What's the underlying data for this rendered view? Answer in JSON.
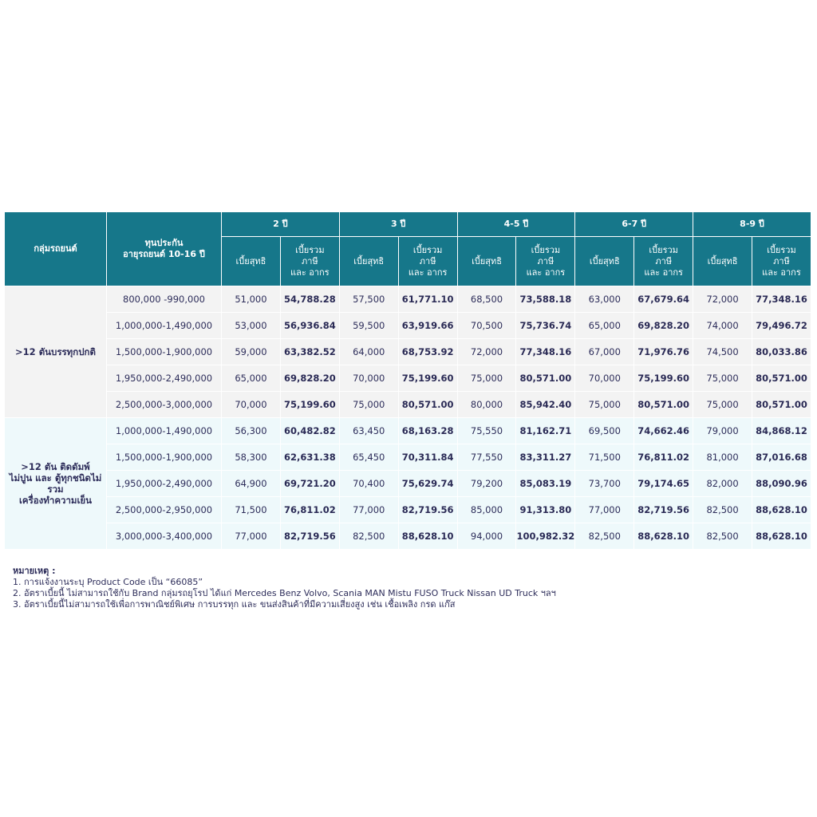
{
  "table": {
    "group_header": "กลุ่มรถยนต์",
    "sum_header": [
      "ทุนประกัน",
      "อายุรถยนต์ 10-16 ปี"
    ],
    "age_groups": [
      "2 ปี",
      "3 ปี",
      "4-5 ปี",
      "6-7 ปี",
      "8-9 ปี"
    ],
    "net_header": "เบี้ยสุทธิ",
    "total_header": [
      "เบี้ยรวม",
      "ภาษี",
      "และ อากร"
    ],
    "groups": [
      {
        "label": [
          ">12 ตันบรรทุกปกติ"
        ],
        "rows": [
          {
            "sum": "800,000 -990,000",
            "cells": [
              "51,000",
              "54,788.28",
              "57,500",
              "61,771.10",
              "68,500",
              "73,588.18",
              "63,000",
              "67,679.64",
              "72,000",
              "77,348.16"
            ]
          },
          {
            "sum": "1,000,000-1,490,000",
            "cells": [
              "53,000",
              "56,936.84",
              "59,500",
              "63,919.66",
              "70,500",
              "75,736.74",
              "65,000",
              "69,828.20",
              "74,000",
              "79,496.72"
            ]
          },
          {
            "sum": "1,500,000-1,900,000",
            "cells": [
              "59,000",
              "63,382.52",
              "64,000",
              "68,753.92",
              "72,000",
              "77,348.16",
              "67,000",
              "71,976.76",
              "74,500",
              "80,033.86"
            ]
          },
          {
            "sum": "1,950,000-2,490,000",
            "cells": [
              "65,000",
              "69,828.20",
              "70,000",
              "75,199.60",
              "75,000",
              "80,571.00",
              "70,000",
              "75,199.60",
              "75,000",
              "80,571.00"
            ]
          },
          {
            "sum": "2,500,000-3,000,000",
            "cells": [
              "70,000",
              "75,199.60",
              "75,000",
              "80,571.00",
              "80,000",
              "85,942.40",
              "75,000",
              "80,571.00",
              "75,000",
              "80,571.00"
            ]
          }
        ]
      },
      {
        "label": [
          ">12 ตัน ติดดัมพ์",
          "ไม่ปูน และ ตู้ทุกชนิดไม่",
          "รวม",
          "เครื่องทำความเย็น"
        ],
        "rows": [
          {
            "sum": "1,000,000-1,490,000",
            "cells": [
              "56,300",
              "60,482.82",
              "63,450",
              "68,163.28",
              "75,550",
              "81,162.71",
              "69,500",
              "74,662.46",
              "79,000",
              "84,868.12"
            ]
          },
          {
            "sum": "1,500,000-1,900,000",
            "cells": [
              "58,300",
              "62,631.38",
              "65,450",
              "70,311.84",
              "77,550",
              "83,311.27",
              "71,500",
              "76,811.02",
              "81,000",
              "87,016.68"
            ]
          },
          {
            "sum": "1,950,000-2,490,000",
            "cells": [
              "64,900",
              "69,721.20",
              "70,400",
              "75,629.74",
              "79,200",
              "85,083.19",
              "73,700",
              "79,174.65",
              "82,000",
              "88,090.96"
            ]
          },
          {
            "sum": "2,500,000-2,950,000",
            "cells": [
              "71,500",
              "76,811.02",
              "77,000",
              "82,719.56",
              "85,000",
              "91,313.80",
              "77,000",
              "82,719.56",
              "82,500",
              "88,628.10"
            ]
          },
          {
            "sum": "3,000,000-3,400,000",
            "cells": [
              "77,000",
              "82,719.56",
              "82,500",
              "88,628.10",
              "94,000",
              "100,982.32",
              "82,500",
              "88,628.10",
              "82,500",
              "88,628.10"
            ]
          }
        ]
      }
    ]
  },
  "notes": {
    "title": "หมายเหตุ :",
    "items": [
      "1. การแจ้งงานระบุ Product Code เป็น “66085”",
      "2. อัตราเบี้ยนี้ ไม่สามารถใช้กับ Brand กลุ่มรถยุโรป ได้แก่  Mercedes Benz Volvo, Scania MAN Mistu FUSO Truck Nissan UD Truck ฯลฯ",
      "3. อัตราเบี้ยนี้ไม่สามารถใช้เพื่อการพาณิชย์พิเศษ การบรรทุก และ ขนส่งสินค้าที่มีความเสี่ยงสูง เช่น เชื้อเพลิง กรด แก๊ส"
    ]
  }
}
